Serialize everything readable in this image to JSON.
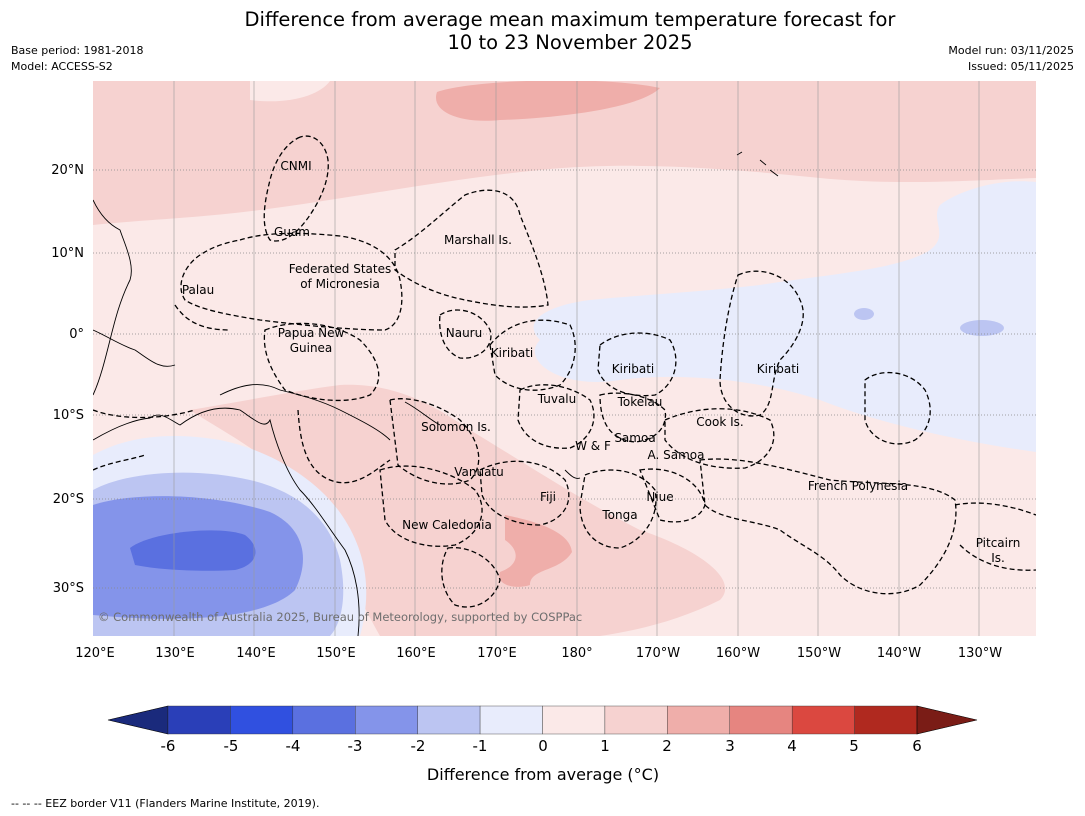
{
  "header": {
    "title_line1": "Difference from average mean maximum temperature forecast for",
    "title_line2": "10 to 23 November 2025",
    "base_period": "Base period: 1981-2018",
    "model": "Model: ACCESS-S2",
    "model_run": "Model run: 03/11/2025",
    "issued": "Issued: 05/11/2025"
  },
  "map": {
    "lon_labels": [
      "120°E",
      "130°E",
      "140°E",
      "150°E",
      "160°E",
      "170°E",
      "180°",
      "170°W",
      "160°W",
      "150°W",
      "140°W",
      "130°W"
    ],
    "lat_labels": [
      "20°N",
      "10°N",
      "0°",
      "10°S",
      "20°S",
      "30°S"
    ],
    "regions": {
      "cnmi": "CNMI",
      "guam": "Guam",
      "marshall": "Marshall Is.",
      "fsm1": "Federated States",
      "fsm2": "of Micronesia",
      "palau": "Palau",
      "png1": "Papua New",
      "png2": "Guinea",
      "nauru": "Nauru",
      "kiribati_w": "Kiribati",
      "kiribati_c": "Kiribati",
      "kiribati_e": "Kiribati",
      "tuvalu": "Tuvalu",
      "tokelau": "Tokelau",
      "cook": "Cook Is.",
      "solomon": "Solomon Is.",
      "samoa": "Samoa",
      "wf": "W & F",
      "asamoa": "A. Samoa",
      "vanuatu": "Vanuatu",
      "fiji": "Fiji",
      "niue": "Niue",
      "tonga": "Tonga",
      "frpoly": "French Polynesia",
      "newcal": "New Caledonia",
      "pitcairn1": "Pitcairn",
      "pitcairn2": "Is."
    },
    "copyright": "© Commonwealth of Australia 2025, Bureau of Meteorology, supported by COSPPac"
  },
  "colorbar": {
    "ticks": [
      "-6",
      "-5",
      "-4",
      "-3",
      "-2",
      "-1",
      "0",
      "1",
      "2",
      "3",
      "4",
      "5",
      "6"
    ],
    "colors": [
      "#1a2a7c",
      "#2a3fb8",
      "#3050e0",
      "#5a70e0",
      "#8494ea",
      "#bcc5f2",
      "#e8ecfc",
      "#fbe9e8",
      "#f6d2d0",
      "#efaeaa",
      "#e68580",
      "#db4840",
      "#b0291f",
      "#7a1c16"
    ],
    "label": "Difference from average (°C)"
  },
  "footnote": "--  --  -- EEZ border V11 (Flanders Marine Institute, 2019)."
}
